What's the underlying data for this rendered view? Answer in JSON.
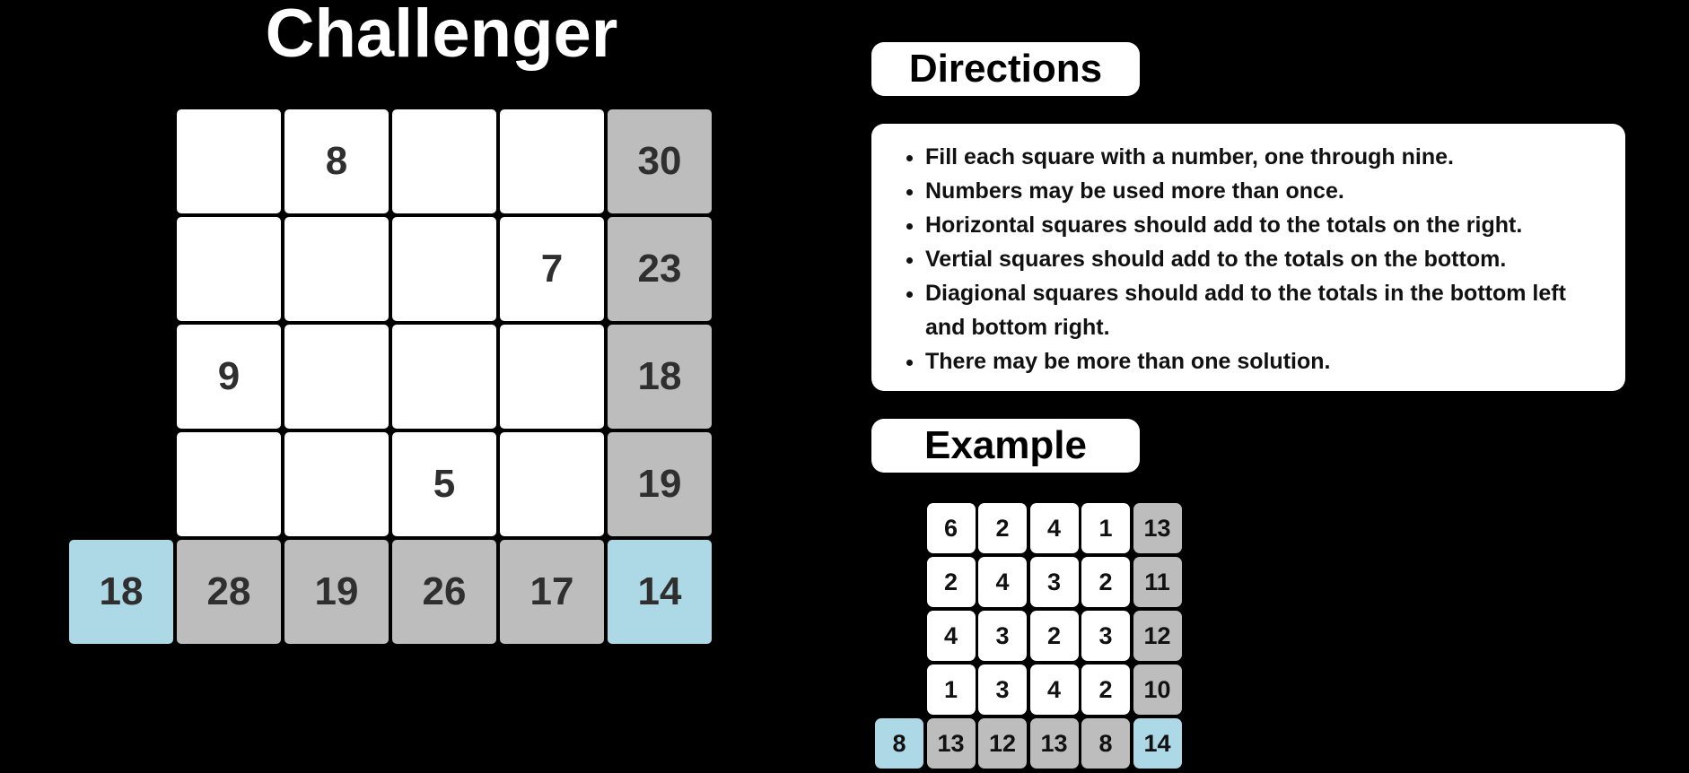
{
  "title": "Challenger",
  "puzzle": {
    "rows": [
      [
        "",
        "8",
        "",
        ""
      ],
      [
        "",
        "",
        "",
        "7"
      ],
      [
        "9",
        "",
        "",
        ""
      ],
      [
        "",
        "",
        "5",
        ""
      ]
    ],
    "row_totals": [
      "30",
      "23",
      "18",
      "19"
    ],
    "column_totals": [
      "28",
      "19",
      "26",
      "17"
    ],
    "diagonal_left_total": "18",
    "diagonal_right_total": "14"
  },
  "directions": {
    "heading": "Directions",
    "items": [
      "Fill each square with a number, one through nine.",
      "Numbers may be used more than once.",
      "Horizontal squares should add to the totals on the right.",
      "Vertial squares should add to the totals on the bottom.",
      "Diagional squares should add to the totals in the bottom left and bottom right.",
      "There may be more than one solution."
    ]
  },
  "example": {
    "heading": "Example",
    "rows": [
      [
        "6",
        "2",
        "4",
        "1"
      ],
      [
        "2",
        "4",
        "3",
        "2"
      ],
      [
        "4",
        "3",
        "2",
        "3"
      ],
      [
        "1",
        "3",
        "4",
        "2"
      ]
    ],
    "row_totals": [
      "13",
      "11",
      "12",
      "10"
    ],
    "column_totals": [
      "13",
      "12",
      "13",
      "8"
    ],
    "diagonal_left_total": "8",
    "diagonal_right_total": "14"
  },
  "colors": {
    "background": "#000000",
    "cell": "#ffffff",
    "total": "#bdbdbd",
    "diagonal_total": "#add8e6"
  }
}
